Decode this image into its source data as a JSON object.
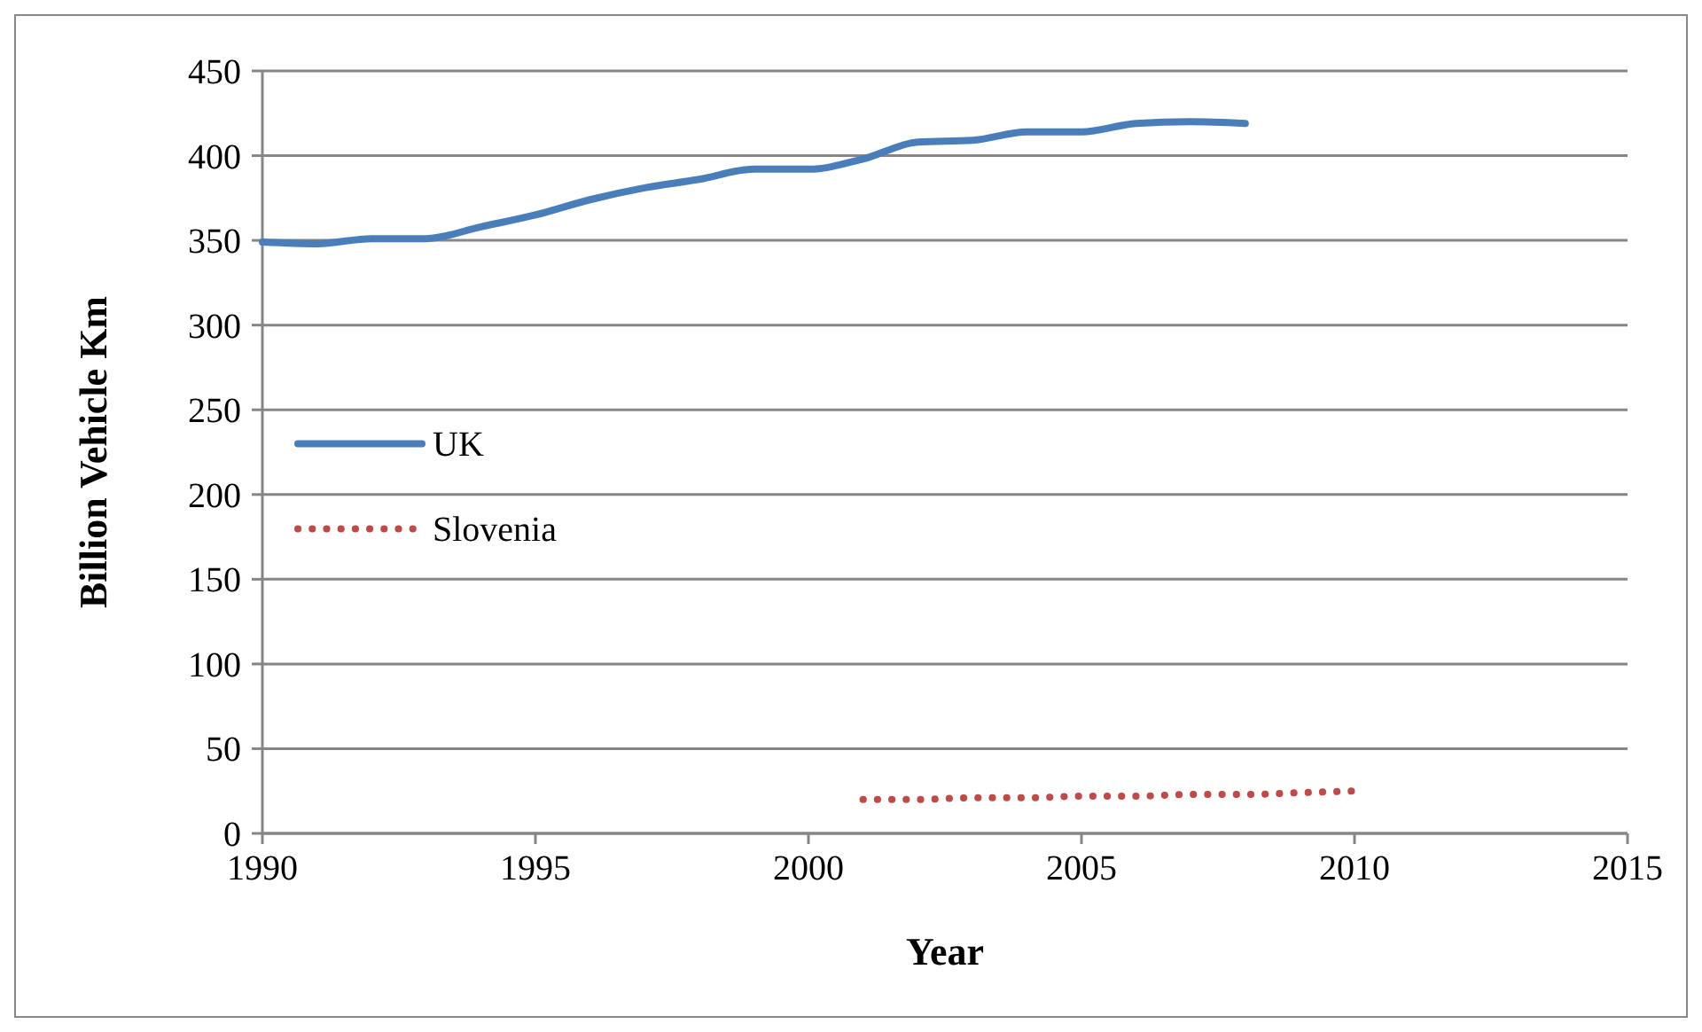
{
  "chart_data": {
    "type": "line",
    "xlabel": "Year",
    "ylabel": "Billion Vehicle Km",
    "xlim": [
      1990,
      2015
    ],
    "xticks": [
      1990,
      1995,
      2000,
      2005,
      2010,
      2015
    ],
    "ylim": [
      0,
      450
    ],
    "yticks": [
      0,
      50,
      100,
      150,
      200,
      250,
      300,
      350,
      400,
      450
    ],
    "grid": "y",
    "legend": "left",
    "series": [
      {
        "name": "UK",
        "color": "#4a7ebb",
        "line_style": "solid",
        "x": [
          1990,
          1991,
          1992,
          1993,
          1994,
          1995,
          1996,
          1997,
          1998,
          1999,
          2000,
          2001,
          2002,
          2003,
          2004,
          2005,
          2006,
          2007,
          2008
        ],
        "values": [
          349,
          348,
          351,
          351,
          358,
          365,
          374,
          381,
          386,
          392,
          392,
          398,
          408,
          409,
          414,
          414,
          419,
          420,
          419
        ]
      },
      {
        "name": "Slovenia",
        "color": "#be4b48",
        "line_style": "dotted",
        "x": [
          2001,
          2002,
          2003,
          2004,
          2005,
          2006,
          2007,
          2008,
          2009,
          2010
        ],
        "values": [
          20,
          20,
          21,
          21,
          22,
          22,
          23,
          23,
          24,
          25
        ]
      }
    ]
  }
}
